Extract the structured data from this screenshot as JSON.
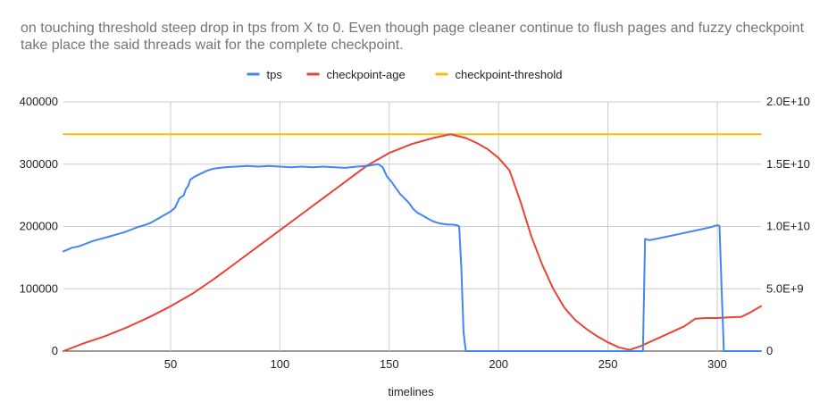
{
  "chart_data": {
    "type": "line",
    "title": "on touching threshold steep drop in tps from X to 0. Even though page cleaner continue to flush pages and fuzzy checkpoint take place the said threads wait for the complete checkpoint.",
    "xlabel": "timelines",
    "ylabel_left": "",
    "ylabel_right": "",
    "xlim": [
      1,
      320
    ],
    "ylim_left": [
      0,
      400000
    ],
    "ylim_right": [
      0,
      20000000000
    ],
    "x_ticks": [
      50,
      100,
      150,
      200,
      250,
      300
    ],
    "x_tick_labels": [
      "50",
      "100",
      "150",
      "200",
      "250",
      "300"
    ],
    "y_left_ticks": [
      0,
      100000,
      200000,
      300000,
      400000
    ],
    "y_left_tick_labels": [
      "0",
      "100000",
      "200000",
      "300000",
      "400000"
    ],
    "y_right_ticks": [
      0,
      5000000000,
      10000000000,
      15000000000,
      20000000000
    ],
    "y_right_tick_labels": [
      "0",
      "5.0E+9",
      "1.0E+10",
      "1.5E+10",
      "2.0E+10"
    ],
    "grid": true,
    "legend_position": "top",
    "series": [
      {
        "name": "tps",
        "axis": "left",
        "color": "#4285f4",
        "points": [
          [
            1,
            160000
          ],
          [
            3,
            163000
          ],
          [
            5,
            166000
          ],
          [
            8,
            168000
          ],
          [
            11,
            172000
          ],
          [
            14,
            176000
          ],
          [
            17,
            179000
          ],
          [
            20,
            182000
          ],
          [
            23,
            185000
          ],
          [
            26,
            188000
          ],
          [
            29,
            191000
          ],
          [
            32,
            195000
          ],
          [
            35,
            199000
          ],
          [
            38,
            202000
          ],
          [
            41,
            206000
          ],
          [
            44,
            212000
          ],
          [
            47,
            218000
          ],
          [
            50,
            224000
          ],
          [
            52,
            230000
          ],
          [
            54,
            245000
          ],
          [
            56,
            250000
          ],
          [
            57,
            260000
          ],
          [
            58,
            265000
          ],
          [
            59,
            275000
          ],
          [
            61,
            280000
          ],
          [
            64,
            285000
          ],
          [
            67,
            290000
          ],
          [
            70,
            293000
          ],
          [
            75,
            295000
          ],
          [
            80,
            296000
          ],
          [
            85,
            297000
          ],
          [
            90,
            296000
          ],
          [
            95,
            297000
          ],
          [
            100,
            296000
          ],
          [
            105,
            295000
          ],
          [
            110,
            296000
          ],
          [
            115,
            295000
          ],
          [
            120,
            296000
          ],
          [
            125,
            295000
          ],
          [
            130,
            294000
          ],
          [
            135,
            296000
          ],
          [
            140,
            297000
          ],
          [
            143,
            299000
          ],
          [
            145,
            300000
          ],
          [
            147,
            295000
          ],
          [
            149,
            280000
          ],
          [
            151,
            272000
          ],
          [
            153,
            262000
          ],
          [
            155,
            252000
          ],
          [
            157,
            245000
          ],
          [
            159,
            238000
          ],
          [
            161,
            228000
          ],
          [
            163,
            222000
          ],
          [
            165,
            218000
          ],
          [
            167,
            214000
          ],
          [
            169,
            210000
          ],
          [
            171,
            207000
          ],
          [
            173,
            205000
          ],
          [
            175,
            204000
          ],
          [
            177,
            203000
          ],
          [
            179,
            203000
          ],
          [
            181,
            202000
          ],
          [
            182,
            200000
          ],
          [
            183,
            130000
          ],
          [
            184,
            30000
          ],
          [
            185,
            0
          ],
          [
            200,
            0
          ],
          [
            220,
            0
          ],
          [
            240,
            0
          ],
          [
            266,
            0
          ],
          [
            267,
            180000
          ],
          [
            269,
            178000
          ],
          [
            272,
            180000
          ],
          [
            276,
            183000
          ],
          [
            280,
            186000
          ],
          [
            284,
            189000
          ],
          [
            288,
            192000
          ],
          [
            292,
            195000
          ],
          [
            296,
            198000
          ],
          [
            299,
            201000
          ],
          [
            300,
            202000
          ],
          [
            301,
            201000
          ],
          [
            302,
            100000
          ],
          [
            303,
            0
          ],
          [
            310,
            0
          ],
          [
            320,
            0
          ]
        ]
      },
      {
        "name": "checkpoint-age",
        "axis": "right",
        "color": "#ea4335",
        "points": [
          [
            1,
            0
          ],
          [
            10,
            600000000
          ],
          [
            20,
            1200000000
          ],
          [
            30,
            1900000000
          ],
          [
            40,
            2700000000
          ],
          [
            50,
            3600000000
          ],
          [
            60,
            4600000000
          ],
          [
            70,
            5800000000
          ],
          [
            80,
            7100000000
          ],
          [
            90,
            8400000000
          ],
          [
            100,
            9700000000
          ],
          [
            110,
            11000000000
          ],
          [
            120,
            12300000000
          ],
          [
            130,
            13600000000
          ],
          [
            140,
            14900000000
          ],
          [
            150,
            15900000000
          ],
          [
            160,
            16600000000
          ],
          [
            170,
            17100000000
          ],
          [
            178,
            17400000000
          ],
          [
            185,
            17100000000
          ],
          [
            190,
            16700000000
          ],
          [
            195,
            16200000000
          ],
          [
            200,
            15500000000
          ],
          [
            205,
            14500000000
          ],
          [
            210,
            12000000000
          ],
          [
            215,
            9200000000
          ],
          [
            220,
            6900000000
          ],
          [
            225,
            5000000000
          ],
          [
            230,
            3500000000
          ],
          [
            235,
            2500000000
          ],
          [
            240,
            1800000000
          ],
          [
            245,
            1200000000
          ],
          [
            250,
            700000000
          ],
          [
            255,
            300000000
          ],
          [
            260,
            100000000
          ],
          [
            265,
            400000000
          ],
          [
            270,
            800000000
          ],
          [
            275,
            1200000000
          ],
          [
            280,
            1600000000
          ],
          [
            285,
            2000000000
          ],
          [
            290,
            2600000000
          ],
          [
            295,
            2650000000
          ],
          [
            300,
            2650000000
          ],
          [
            305,
            2700000000
          ],
          [
            311,
            2750000000
          ],
          [
            315,
            3100000000
          ],
          [
            320,
            3600000000
          ]
        ]
      },
      {
        "name": "checkpoint-threshold",
        "axis": "right",
        "color": "#fbbc04",
        "points": [
          [
            1,
            17400000000
          ],
          [
            320,
            17400000000
          ]
        ]
      }
    ]
  }
}
